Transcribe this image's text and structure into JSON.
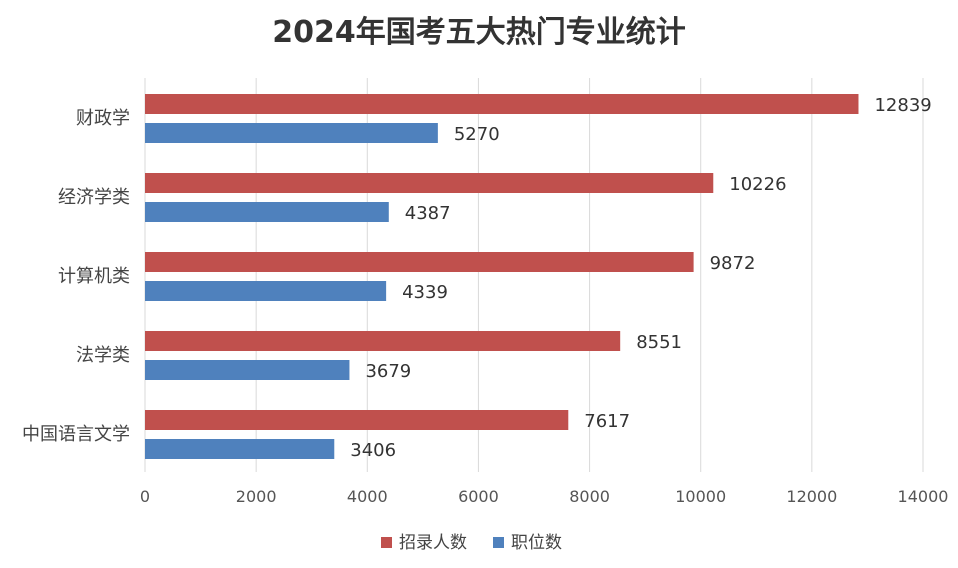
{
  "chart_data": {
    "type": "bar",
    "orientation": "horizontal",
    "title": "2024年国考五大热门专业统计",
    "categories": [
      "财政学",
      "经济学类",
      "计算机类",
      "法学类",
      "中国语言文学"
    ],
    "series": [
      {
        "name": "招录人数",
        "color": "#c0504d",
        "values": [
          12839,
          10226,
          9872,
          8551,
          7617
        ]
      },
      {
        "name": "职位数",
        "color": "#4f81bd",
        "values": [
          5270,
          4387,
          4339,
          3679,
          3406
        ]
      }
    ],
    "xlim": [
      0,
      14000
    ],
    "xticks": [
      0,
      2000,
      4000,
      6000,
      8000,
      10000,
      12000,
      14000
    ],
    "grid": true,
    "legend_position": "bottom"
  }
}
